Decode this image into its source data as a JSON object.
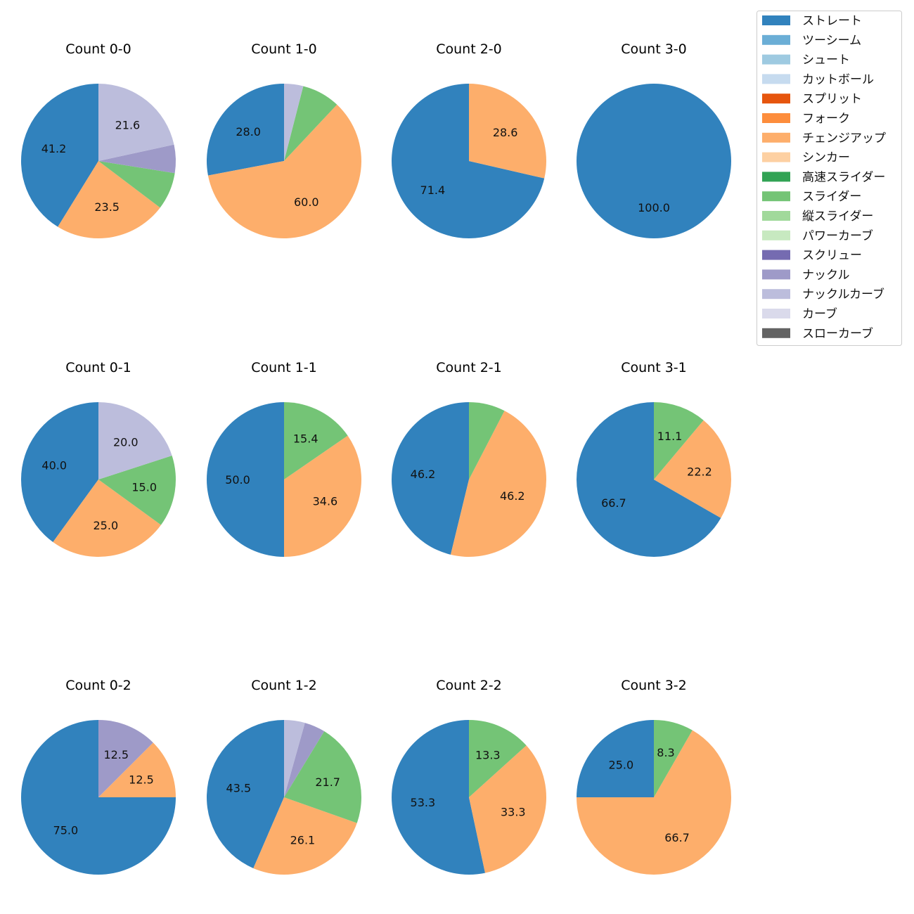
{
  "chart_data": {
    "type": "pie",
    "legend": {
      "placement": "top-right",
      "entries": [
        {
          "name": "ストレート",
          "color": "#3182bd"
        },
        {
          "name": "ツーシーム",
          "color": "#6baed6"
        },
        {
          "name": "シュート",
          "color": "#9ecae1"
        },
        {
          "name": "カットボール",
          "color": "#c6dbef"
        },
        {
          "name": "スプリット",
          "color": "#e6550d"
        },
        {
          "name": "フォーク",
          "color": "#fd8d3c"
        },
        {
          "name": "チェンジアップ",
          "color": "#fdae6b"
        },
        {
          "name": "シンカー",
          "color": "#fdd0a2"
        },
        {
          "name": "高速スライダー",
          "color": "#31a354"
        },
        {
          "name": "スライダー",
          "color": "#74c476"
        },
        {
          "name": "縦スライダー",
          "color": "#a1d99b"
        },
        {
          "name": "パワーカーブ",
          "color": "#c7e9c0"
        },
        {
          "name": "スクリュー",
          "color": "#756bb1"
        },
        {
          "name": "ナックル",
          "color": "#9e9ac8"
        },
        {
          "name": "ナックルカーブ",
          "color": "#bcbddc"
        },
        {
          "name": "カーブ",
          "color": "#dadaeb"
        },
        {
          "name": "スローカーブ",
          "color": "#636363"
        }
      ]
    },
    "pies": [
      {
        "title": "Count 0-0",
        "slices": [
          {
            "category": "ストレート",
            "value": 41.2,
            "label": "41.2"
          },
          {
            "category": "チェンジアップ",
            "value": 23.5,
            "label": "23.5"
          },
          {
            "category": "スライダー",
            "value": 7.8,
            "label": ""
          },
          {
            "category": "ナックル",
            "value": 5.9,
            "label": ""
          },
          {
            "category": "ナックルカーブ",
            "value": 21.6,
            "label": "21.6"
          }
        ]
      },
      {
        "title": "Count 1-0",
        "slices": [
          {
            "category": "ストレート",
            "value": 28.0,
            "label": "28.0"
          },
          {
            "category": "チェンジアップ",
            "value": 60.0,
            "label": "60.0"
          },
          {
            "category": "スライダー",
            "value": 8.0,
            "label": ""
          },
          {
            "category": "ナックルカーブ",
            "value": 4.0,
            "label": ""
          }
        ]
      },
      {
        "title": "Count 2-0",
        "slices": [
          {
            "category": "ストレート",
            "value": 71.4,
            "label": "71.4"
          },
          {
            "category": "チェンジアップ",
            "value": 28.6,
            "label": "28.6"
          }
        ]
      },
      {
        "title": "Count 3-0",
        "slices": [
          {
            "category": "ストレート",
            "value": 100.0,
            "label": "100.0"
          }
        ]
      },
      {
        "title": "Count 0-1",
        "slices": [
          {
            "category": "ストレート",
            "value": 40.0,
            "label": "40.0"
          },
          {
            "category": "チェンジアップ",
            "value": 25.0,
            "label": "25.0"
          },
          {
            "category": "スライダー",
            "value": 15.0,
            "label": "15.0"
          },
          {
            "category": "ナックルカーブ",
            "value": 20.0,
            "label": "20.0"
          }
        ]
      },
      {
        "title": "Count 1-1",
        "slices": [
          {
            "category": "ストレート",
            "value": 50.0,
            "label": "50.0"
          },
          {
            "category": "チェンジアップ",
            "value": 34.6,
            "label": "34.6"
          },
          {
            "category": "スライダー",
            "value": 15.4,
            "label": "15.4"
          }
        ]
      },
      {
        "title": "Count 2-1",
        "slices": [
          {
            "category": "ストレート",
            "value": 46.2,
            "label": "46.2"
          },
          {
            "category": "チェンジアップ",
            "value": 46.2,
            "label": "46.2"
          },
          {
            "category": "スライダー",
            "value": 7.6,
            "label": ""
          }
        ]
      },
      {
        "title": "Count 3-1",
        "slices": [
          {
            "category": "ストレート",
            "value": 66.7,
            "label": "66.7"
          },
          {
            "category": "チェンジアップ",
            "value": 22.2,
            "label": "22.2"
          },
          {
            "category": "スライダー",
            "value": 11.1,
            "label": "11.1"
          }
        ]
      },
      {
        "title": "Count 0-2",
        "slices": [
          {
            "category": "ストレート",
            "value": 75.0,
            "label": "75.0"
          },
          {
            "category": "チェンジアップ",
            "value": 12.5,
            "label": "12.5"
          },
          {
            "category": "ナックル",
            "value": 12.5,
            "label": "12.5"
          }
        ]
      },
      {
        "title": "Count 1-2",
        "slices": [
          {
            "category": "ストレート",
            "value": 43.5,
            "label": "43.5"
          },
          {
            "category": "チェンジアップ",
            "value": 26.1,
            "label": "26.1"
          },
          {
            "category": "スライダー",
            "value": 21.7,
            "label": "21.7"
          },
          {
            "category": "ナックル",
            "value": 4.35,
            "label": ""
          },
          {
            "category": "ナックルカーブ",
            "value": 4.35,
            "label": ""
          }
        ]
      },
      {
        "title": "Count 2-2",
        "slices": [
          {
            "category": "ストレート",
            "value": 53.3,
            "label": "53.3"
          },
          {
            "category": "チェンジアップ",
            "value": 33.3,
            "label": "33.3"
          },
          {
            "category": "スライダー",
            "value": 13.3,
            "label": "13.3"
          }
        ]
      },
      {
        "title": "Count 3-2",
        "slices": [
          {
            "category": "ストレート",
            "value": 25.0,
            "label": "25.0"
          },
          {
            "category": "チェンジアップ",
            "value": 66.7,
            "label": "66.7"
          },
          {
            "category": "スライダー",
            "value": 8.3,
            "label": "8.3"
          }
        ]
      }
    ]
  }
}
